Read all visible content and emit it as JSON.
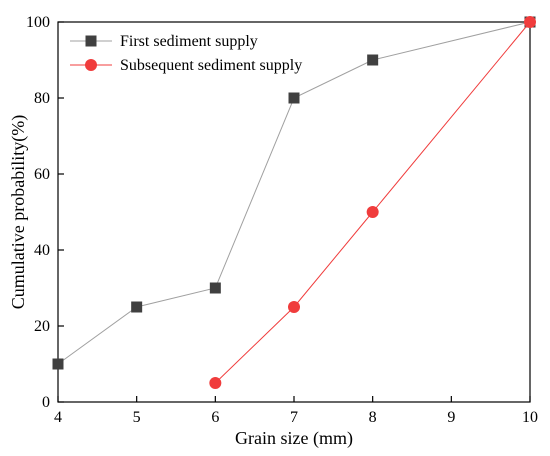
{
  "chart_data": {
    "type": "line",
    "xlabel": "Grain size (mm)",
    "ylabel": "Cumulative probability(%)",
    "xlim": [
      4,
      10
    ],
    "ylim": [
      0,
      100
    ],
    "xticks": [
      4,
      5,
      6,
      7,
      8,
      9,
      10
    ],
    "yticks": [
      0,
      20,
      40,
      60,
      80,
      100
    ],
    "grid": false,
    "legend_position": "top-left",
    "series": [
      {
        "name": "First sediment supply",
        "marker": "square",
        "color": "#404040",
        "line_color": "#a0a0a0",
        "x": [
          4,
          5,
          6,
          7,
          8,
          10
        ],
        "y": [
          10,
          25,
          30,
          80,
          90,
          100
        ]
      },
      {
        "name": "Subsequent sediment supply",
        "marker": "circle",
        "color": "#f03c3c",
        "line_color": "#f03c3c",
        "x": [
          6,
          7,
          8,
          10
        ],
        "y": [
          5,
          25,
          50,
          100
        ]
      }
    ]
  }
}
